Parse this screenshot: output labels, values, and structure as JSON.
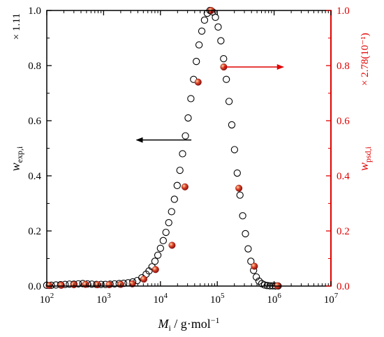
{
  "chart_data": {
    "type": "scatter",
    "title": "",
    "x_scale": "log",
    "xlim": [
      100,
      10000000
    ],
    "ylim_left": [
      0,
      1.0
    ],
    "ylim_right": [
      0,
      1.0
    ],
    "x_ticks": [
      {
        "value": 100,
        "base": "10",
        "exp": "2"
      },
      {
        "value": 1000,
        "base": "10",
        "exp": "3"
      },
      {
        "value": 10000,
        "base": "10",
        "exp": "4"
      },
      {
        "value": 100000,
        "base": "10",
        "exp": "5"
      },
      {
        "value": 1000000,
        "base": "10",
        "exp": "6"
      },
      {
        "value": 10000000,
        "base": "10",
        "exp": "7"
      }
    ],
    "y_ticks_left": [
      "0.0",
      "0.2",
      "0.4",
      "0.6",
      "0.8",
      "1.0"
    ],
    "y_ticks_right": [
      "0.0",
      "0.2",
      "0.4",
      "0.6",
      "0.8",
      "1.0"
    ],
    "xlabel": {
      "main": "M",
      "sub": "i",
      "unit": " / g·mol",
      "sup": "−1"
    },
    "ylabel_left": {
      "main": "w",
      "sub": "exp,i"
    },
    "ylabel_right": {
      "main": "w",
      "sub": "psd,i"
    },
    "left_scale_note": "× 1.11",
    "right_scale_note": "× 2.78(10⁻¹)",
    "colors": {
      "left_axis": "#000000",
      "right_axis": "#e00000",
      "psd_marker": "#d62020",
      "exp_marker": "#000000"
    },
    "series": [
      {
        "axis": "left",
        "style": "open-circle",
        "x": [
          100,
          120,
          145,
          175,
          210,
          250,
          300,
          360,
          430,
          520,
          620,
          750,
          900,
          1080,
          1300,
          1560,
          1880,
          2250,
          2700,
          3250,
          3900,
          4700,
          5600,
          6300,
          7100,
          8000,
          9000,
          10000,
          11200,
          12500,
          14000,
          15700,
          17600,
          19700,
          22000,
          24500,
          27500,
          30700,
          34300,
          38300,
          42800,
          47800,
          53400,
          59600,
          66600,
          74400,
          83100,
          92800,
          103600,
          115700,
          129200,
          144300,
          161200,
          180000,
          201000,
          224500,
          250700,
          280000,
          312700,
          349200,
          390000,
          435500,
          486400,
          543200,
          606600,
          677500,
          756600,
          845000,
          943700,
          1054000,
          1177000
        ],
        "y": [
          0.003,
          0.003,
          0.004,
          0.005,
          0.006,
          0.007,
          0.007,
          0.008,
          0.009,
          0.008,
          0.007,
          0.006,
          0.006,
          0.006,
          0.007,
          0.008,
          0.009,
          0.01,
          0.012,
          0.015,
          0.02,
          0.03,
          0.043,
          0.055,
          0.07,
          0.09,
          0.112,
          0.137,
          0.165,
          0.195,
          0.23,
          0.27,
          0.315,
          0.365,
          0.42,
          0.48,
          0.545,
          0.61,
          0.68,
          0.75,
          0.815,
          0.875,
          0.925,
          0.965,
          0.99,
          1.0,
          0.995,
          0.975,
          0.94,
          0.89,
          0.825,
          0.75,
          0.67,
          0.585,
          0.495,
          0.41,
          0.33,
          0.255,
          0.19,
          0.135,
          0.09,
          0.057,
          0.033,
          0.018,
          0.009,
          0.004,
          0.002,
          0.001,
          0.001,
          0.0005,
          0.0003
        ]
      },
      {
        "axis": "right",
        "style": "filled-sphere",
        "x": [
          110,
          180,
          300,
          480,
          780,
          1250,
          2000,
          3200,
          5100,
          8200,
          16000,
          27000,
          46000,
          78000,
          130000,
          240000,
          450000,
          1150000
        ],
        "y": [
          0.002,
          0.003,
          0.005,
          0.006,
          0.005,
          0.005,
          0.006,
          0.008,
          0.025,
          0.06,
          0.148,
          0.36,
          0.74,
          1.0,
          0.795,
          0.355,
          0.072,
          0.001
        ]
      }
    ],
    "annotations": [
      {
        "type": "arrow",
        "direction": "left",
        "axis": "left",
        "from": [
          35000,
          0.53
        ],
        "to": [
          3800,
          0.53
        ]
      },
      {
        "type": "arrow",
        "direction": "right",
        "axis": "left",
        "from": [
          130000,
          0.795
        ],
        "to": [
          1450000,
          0.795
        ]
      }
    ]
  }
}
